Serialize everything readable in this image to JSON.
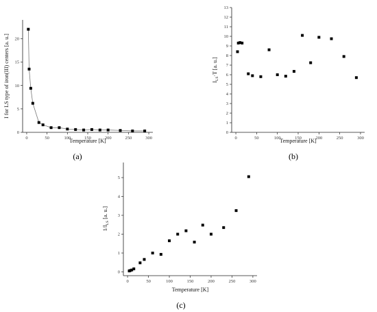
{
  "chart_data": [
    {
      "panel": "(a)",
      "type": "scatter",
      "xlabel": "Temperature [K]",
      "ylabel": "I for LS type of iron(III) centers [a. u.]",
      "xlim": [
        -10,
        310
      ],
      "ylim": [
        0,
        24
      ],
      "xticks": [
        "0",
        "50",
        "100",
        "150",
        "200",
        "250",
        "300"
      ],
      "yticks": [
        "0",
        "5",
        "10",
        "15",
        "20"
      ],
      "xtick_values": [
        0,
        50,
        100,
        150,
        200,
        250,
        300
      ],
      "ytick_values": [
        0,
        5,
        10,
        15,
        20
      ],
      "fit_line": true,
      "points": [
        {
          "x": 4,
          "y": 22
        },
        {
          "x": 6,
          "y": 13.5
        },
        {
          "x": 10,
          "y": 9.4
        },
        {
          "x": 15,
          "y": 6.2
        },
        {
          "x": 30,
          "y": 2.1
        },
        {
          "x": 40,
          "y": 1.6
        },
        {
          "x": 60,
          "y": 1.0
        },
        {
          "x": 80,
          "y": 1.0
        },
        {
          "x": 100,
          "y": 0.7
        },
        {
          "x": 120,
          "y": 0.6
        },
        {
          "x": 140,
          "y": 0.5
        },
        {
          "x": 160,
          "y": 0.6
        },
        {
          "x": 180,
          "y": 0.5
        },
        {
          "x": 200,
          "y": 0.5
        },
        {
          "x": 230,
          "y": 0.4
        },
        {
          "x": 260,
          "y": 0.3
        },
        {
          "x": 290,
          "y": 0.3
        }
      ]
    },
    {
      "panel": "(b)",
      "type": "scatter",
      "xlabel": "Temperature [K]",
      "ylabel_main": "I",
      "ylabel_sub": "LS",
      "ylabel_rest": "·T [a. u.]",
      "xlim": [
        -10,
        310
      ],
      "ylim": [
        0,
        13
      ],
      "xticks": [
        "0",
        "50",
        "100",
        "150",
        "200",
        "250",
        "300"
      ],
      "yticks": [
        "0",
        "1",
        "2",
        "3",
        "4",
        "5",
        "6",
        "7",
        "8",
        "9",
        "10",
        "11",
        "12",
        "13"
      ],
      "xtick_values": [
        0,
        50,
        100,
        150,
        200,
        250,
        300
      ],
      "ytick_values": [
        0,
        1,
        2,
        3,
        4,
        5,
        6,
        7,
        8,
        9,
        10,
        11,
        12,
        13
      ],
      "points": [
        {
          "x": 4,
          "y": 8.4
        },
        {
          "x": 6,
          "y": 9.3
        },
        {
          "x": 10,
          "y": 9.35
        },
        {
          "x": 15,
          "y": 9.3
        },
        {
          "x": 30,
          "y": 6.1
        },
        {
          "x": 40,
          "y": 5.9
        },
        {
          "x": 60,
          "y": 5.8
        },
        {
          "x": 80,
          "y": 8.6
        },
        {
          "x": 100,
          "y": 6.0
        },
        {
          "x": 120,
          "y": 5.85
        },
        {
          "x": 140,
          "y": 6.35
        },
        {
          "x": 160,
          "y": 10.1
        },
        {
          "x": 180,
          "y": 7.25
        },
        {
          "x": 200,
          "y": 9.9
        },
        {
          "x": 230,
          "y": 9.75
        },
        {
          "x": 260,
          "y": 7.9
        },
        {
          "x": 290,
          "y": 5.7
        }
      ]
    },
    {
      "panel": "(c)",
      "type": "scatter",
      "xlabel": "Temperature [K]",
      "ylabel_main": "1/I",
      "ylabel_sub": "LS",
      "ylabel_rest": " [a. u.]",
      "xlim": [
        -10,
        310
      ],
      "ylim": [
        -0.2,
        5.8
      ],
      "xticks": [
        "0",
        "50",
        "100",
        "150",
        "200",
        "250",
        "300"
      ],
      "yticks": [
        "0",
        "1",
        "2",
        "3",
        "4",
        "5"
      ],
      "xtick_values": [
        0,
        50,
        100,
        150,
        200,
        250,
        300
      ],
      "ytick_values": [
        0,
        1,
        2,
        3,
        4,
        5
      ],
      "points": [
        {
          "x": 4,
          "y": 0.05
        },
        {
          "x": 6,
          "y": 0.07
        },
        {
          "x": 10,
          "y": 0.1
        },
        {
          "x": 15,
          "y": 0.16
        },
        {
          "x": 30,
          "y": 0.48
        },
        {
          "x": 40,
          "y": 0.66
        },
        {
          "x": 60,
          "y": 1.0
        },
        {
          "x": 80,
          "y": 0.93
        },
        {
          "x": 100,
          "y": 1.65
        },
        {
          "x": 120,
          "y": 2.0
        },
        {
          "x": 140,
          "y": 2.18
        },
        {
          "x": 160,
          "y": 1.58
        },
        {
          "x": 180,
          "y": 2.48
        },
        {
          "x": 200,
          "y": 2.0
        },
        {
          "x": 230,
          "y": 2.35
        },
        {
          "x": 260,
          "y": 3.25
        },
        {
          "x": 290,
          "y": 5.05
        }
      ]
    }
  ]
}
